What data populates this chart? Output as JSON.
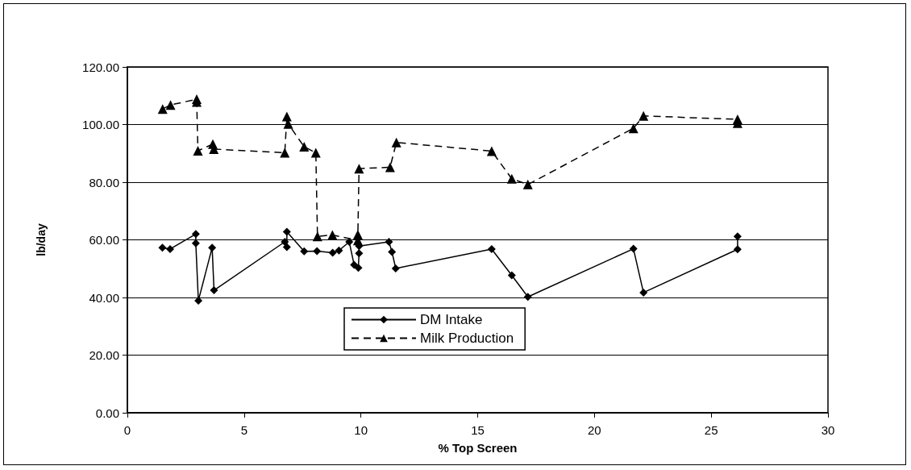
{
  "chart_data": {
    "type": "line",
    "xlabel": "% Top Screen",
    "ylabel": "lb/day",
    "xlim": [
      0,
      30
    ],
    "xticks": [
      0,
      5,
      10,
      15,
      20,
      25,
      30
    ],
    "ylim": [
      0,
      120
    ],
    "yticks": [
      {
        "value": 0,
        "label": "0.00"
      },
      {
        "value": 20,
        "label": "20.00"
      },
      {
        "value": 40,
        "label": "40.00"
      },
      {
        "value": 60,
        "label": "60.00"
      },
      {
        "value": 80,
        "label": "80.00"
      },
      {
        "value": 100,
        "label": "100.00"
      },
      {
        "value": 120,
        "label": "120.00"
      }
    ],
    "grid": "y",
    "legend": "bottom",
    "series": [
      {
        "name": "DM Intake",
        "color": "#000000",
        "marker": "diamond",
        "line_style": "solid",
        "x": [
          1.5,
          1.83,
          2.93,
          2.93,
          3.04,
          3.63,
          3.71,
          6.74,
          6.83,
          6.83,
          7.57,
          8.12,
          8.79,
          9.06,
          9.5,
          9.71,
          9.89,
          9.92,
          9.92,
          11.2,
          11.33,
          11.49,
          15.6,
          16.46,
          17.15,
          21.67,
          22.1,
          26.13,
          26.13
        ],
        "values": [
          57.3,
          56.8,
          62,
          58.8,
          38.9,
          57.3,
          42.5,
          59.3,
          57.5,
          62.8,
          56,
          56.1,
          55.5,
          56.3,
          59.3,
          51.3,
          50.3,
          55.3,
          57.8,
          59.3,
          55.8,
          50.1,
          56.8,
          47.7,
          40.2,
          56.9,
          41.7,
          56.7,
          61.2
        ]
      },
      {
        "name": "Milk Production",
        "color": "#000000",
        "marker": "triangle",
        "line_style": "dashed",
        "x": [
          1.51,
          1.85,
          2.97,
          2.97,
          3.02,
          3.66,
          3.7,
          6.74,
          6.83,
          6.89,
          7.57,
          8.07,
          8.14,
          8.78,
          9.87,
          9.87,
          9.92,
          11.25,
          11.52,
          15.6,
          16.46,
          17.15,
          21.67,
          22.1,
          26.13,
          26.13
        ],
        "values": [
          105.4,
          106.8,
          108.8,
          107.8,
          90.9,
          93.2,
          91.5,
          90.2,
          102.8,
          100.2,
          92.3,
          90.2,
          61.2,
          61.7,
          59.8,
          61.8,
          84.7,
          85.2,
          93.8,
          90.8,
          81.2,
          79.2,
          98.7,
          103,
          101.8,
          100.5
        ]
      }
    ]
  }
}
